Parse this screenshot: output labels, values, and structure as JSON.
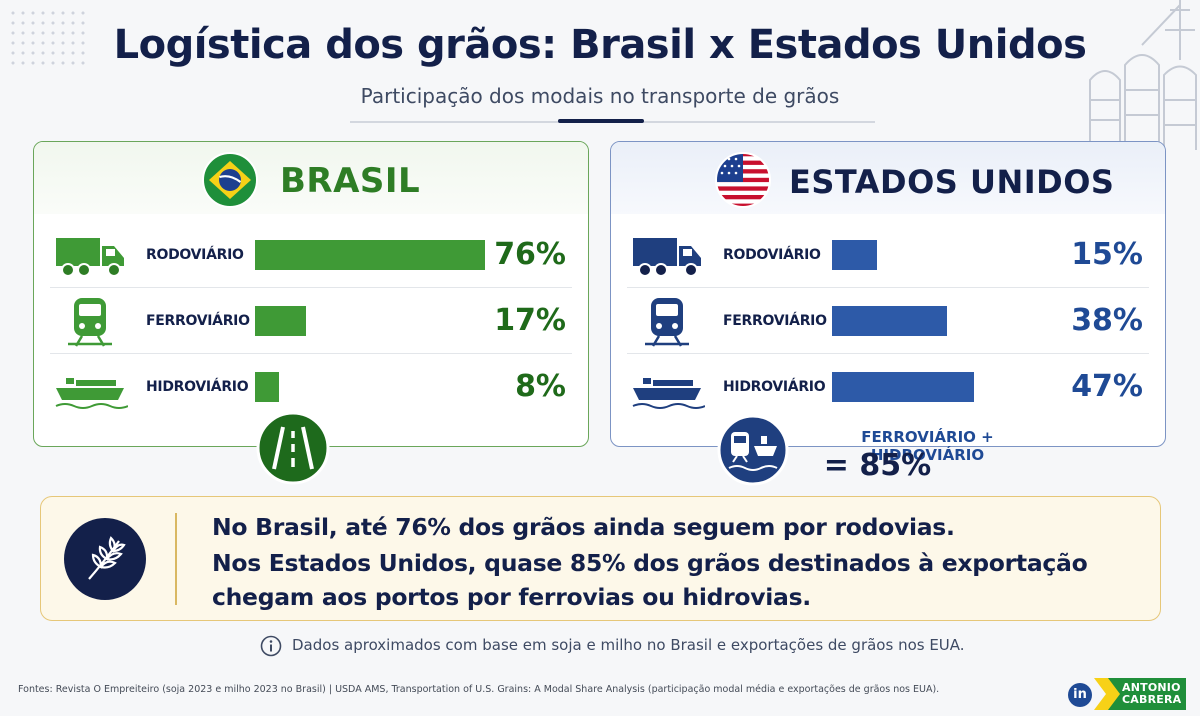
{
  "title": "Logística dos grãos: Brasil x Estados Unidos",
  "subtitle": "Participação dos modais no transporte de grãos",
  "colors": {
    "brasil": "#3f9a36",
    "estados_unidos": "#2d5aa8",
    "navy": "#13204a",
    "callout_bg": "#fdf8e9"
  },
  "chart_data": [
    {
      "type": "bar",
      "title": "BRASIL",
      "categories": [
        "RODOVIÁRIO",
        "FERROVIÁRIO",
        "HIDROVIÁRIO"
      ],
      "values": [
        76,
        17,
        8
      ],
      "value_labels": [
        "76%",
        "17%",
        "8%"
      ],
      "xlim": [
        0,
        76
      ],
      "icons": [
        "truck-icon",
        "train-icon",
        "ship-icon"
      ],
      "color": "#3f9a36"
    },
    {
      "type": "bar",
      "title": "ESTADOS UNIDOS",
      "categories": [
        "RODOVIÁRIO",
        "FERROVIÁRIO",
        "HIDROVIÁRIO"
      ],
      "values": [
        15,
        38,
        47
      ],
      "value_labels": [
        "15%",
        "38%",
        "47%"
      ],
      "xlim": [
        0,
        76
      ],
      "icons": [
        "truck-icon",
        "train-icon",
        "ship-icon"
      ],
      "color": "#2d5aa8"
    }
  ],
  "us_summary": {
    "label": "FERROVIÁRIO + HIDROVIÁRIO",
    "value": "= 85%"
  },
  "callout": {
    "line1": "No Brasil, até 76% dos grãos ainda seguem por rodovias.",
    "line2": "Nos Estados Unidos, quase 85% dos grãos destinados à exportação",
    "line3": "chegam aos portos por ferrovias ou hidrovias."
  },
  "note": "Dados aproximados com base em soja e milho no Brasil e exportações de grãos nos EUA.",
  "sources": "Fontes: Revista O Empreiteiro (soja 2023 e milho 2023 no Brasil) | USDA AMS, Transportation of U.S. Grains: A Modal Share Analysis (participação modal média e exportações de grãos nos EUA).",
  "brand": {
    "linkedin": "in",
    "name_line1": "ANTONIO",
    "name_line2": "CABRERA"
  }
}
